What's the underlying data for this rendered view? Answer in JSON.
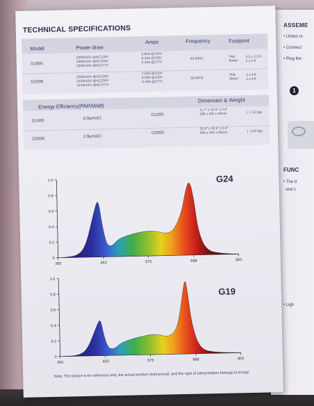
{
  "title": "TECHNICAL SPECIFICATIONS",
  "table": {
    "headers": {
      "model": "Model",
      "power": "Power draw",
      "amps": "Amps",
      "frequency": "Frequency",
      "footprint": "Footprint"
    },
    "rows": [
      {
        "model": "G1000",
        "power": [
          "100W±5% @AC120V",
          "100W±5% @AC230V",
          "100W±5% @AC277V"
        ],
        "amps": [
          "0.86A @120V",
          "0.43A @230V",
          "0.36A @277V"
        ],
        "frequency": "50-60HZ",
        "footprint": [
          "Veg",
          "flower",
          "2.5 x 2.5 ft",
          "2 x 2 ft"
        ]
      },
      {
        "model": "G2000",
        "power": [
          "220W±5% @AC120V",
          "215W±5% @AC230V",
          "215W±5% @AC277V"
        ],
        "amps": [
          "1.83A @120V",
          "0.93A @230V",
          "0.78A @277V"
        ],
        "frequency": "50-60HZ",
        "footprint": [
          "Veg",
          "flower",
          "3 x 4 ft",
          "2 x 4 ft"
        ]
      }
    ]
  },
  "efficiency": {
    "header": "Energy Efficiency(PAR/Watt)",
    "rows": [
      {
        "model": "G1000",
        "value": "3.0µmol/J"
      },
      {
        "model": "G2000",
        "value": "2.9µmol/J"
      }
    ]
  },
  "dimension": {
    "header": "Dimension & Weight",
    "rows": [
      {
        "model": "G1000",
        "inch": "11.7\" x 10.4\" x 2.4\"",
        "mm": "298 x 265 x 60mm",
        "weight": "2.12 kgs"
      },
      {
        "model": "G2000",
        "inch": "25.4\" x 10.4\" x 2.4\"",
        "mm": "645 x 265 x 60mm",
        "weight": "3.52 kgs"
      }
    ]
  },
  "chart_data": [
    {
      "type": "area",
      "title": "G24",
      "xlabel": "",
      "ylabel": "",
      "xlim": [
        350,
        800
      ],
      "ylim": [
        0,
        1.0
      ],
      "x_ticks": [
        350,
        463,
        575,
        688,
        800
      ],
      "y_ticks": [
        "0",
        "0.2",
        "0.4",
        "0.6",
        "0.8",
        "1.0"
      ],
      "grid": false,
      "x": [
        360,
        400,
        420,
        440,
        450,
        455,
        460,
        470,
        480,
        490,
        500,
        520,
        540,
        560,
        580,
        600,
        620,
        640,
        660,
        670,
        680,
        690,
        700,
        720,
        760,
        800
      ],
      "y": [
        0,
        0.02,
        0.15,
        0.55,
        0.73,
        0.65,
        0.45,
        0.18,
        0.13,
        0.16,
        0.22,
        0.26,
        0.29,
        0.31,
        0.32,
        0.31,
        0.28,
        0.32,
        0.55,
        0.82,
        0.97,
        0.75,
        0.3,
        0.05,
        0.01,
        0
      ]
    },
    {
      "type": "area",
      "title": "G19",
      "xlabel": "",
      "ylabel": "",
      "xlim": [
        350,
        800
      ],
      "ylim": [
        0,
        1.0
      ],
      "x_ticks": [
        350,
        463,
        575,
        688,
        800
      ],
      "y_ticks": [
        "0",
        "0.2",
        "0.4",
        "0.6",
        "0.8",
        "1.0"
      ],
      "grid": false,
      "x": [
        360,
        400,
        420,
        440,
        450,
        455,
        460,
        470,
        480,
        490,
        500,
        520,
        540,
        560,
        580,
        600,
        620,
        640,
        650,
        660,
        665,
        670,
        680,
        700,
        740,
        800
      ],
      "y": [
        0,
        0.01,
        0.1,
        0.35,
        0.47,
        0.4,
        0.25,
        0.1,
        0.08,
        0.1,
        0.15,
        0.19,
        0.22,
        0.24,
        0.26,
        0.25,
        0.22,
        0.3,
        0.5,
        0.85,
        0.96,
        0.8,
        0.35,
        0.05,
        0.01,
        0
      ]
    }
  ],
  "note": "Note: The picture is for reference only, the actual product shall prevail, and the right of interpretation belongs to Koray!",
  "right_page": {
    "title": "ASSEME",
    "bullets": [
      "Unbox m",
      "Connect",
      "Plug the"
    ],
    "step": "1",
    "section": "FUNC",
    "body": [
      "The d",
      "and c"
    ],
    "light": "Ligh"
  }
}
